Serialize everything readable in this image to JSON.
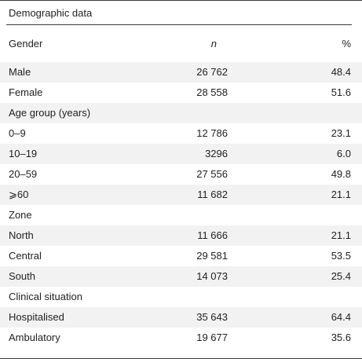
{
  "table": {
    "caption": "Demographic data",
    "header": {
      "label": "Gender",
      "n": "n",
      "pct": "%"
    },
    "rows": [
      {
        "label": "Male",
        "n": "26 762",
        "pct": "48.4"
      },
      {
        "label": "Female",
        "n": "28 558",
        "pct": "51.6"
      },
      {
        "label": "Age group (years)",
        "n": "",
        "pct": ""
      },
      {
        "label": "0–9",
        "n": "12 786",
        "pct": "23.1"
      },
      {
        "label": "10–19",
        "n": "3296",
        "pct": "6.0"
      },
      {
        "label": "20–59",
        "n": "27 556",
        "pct": "49.8"
      },
      {
        "label": "⩾60",
        "n": "11 682",
        "pct": "21.1"
      },
      {
        "label": "Zone",
        "n": "",
        "pct": ""
      },
      {
        "label": "North",
        "n": "11 666",
        "pct": "21.1"
      },
      {
        "label": "Central",
        "n": "29 581",
        "pct": "53.5"
      },
      {
        "label": "South",
        "n": "14 073",
        "pct": "25.4"
      },
      {
        "label": "Clinical situation",
        "n": "",
        "pct": ""
      },
      {
        "label": "Hospitalised",
        "n": "35 643",
        "pct": "64.4"
      },
      {
        "label": "Ambulatory",
        "n": "19 677",
        "pct": "35.6"
      }
    ]
  }
}
